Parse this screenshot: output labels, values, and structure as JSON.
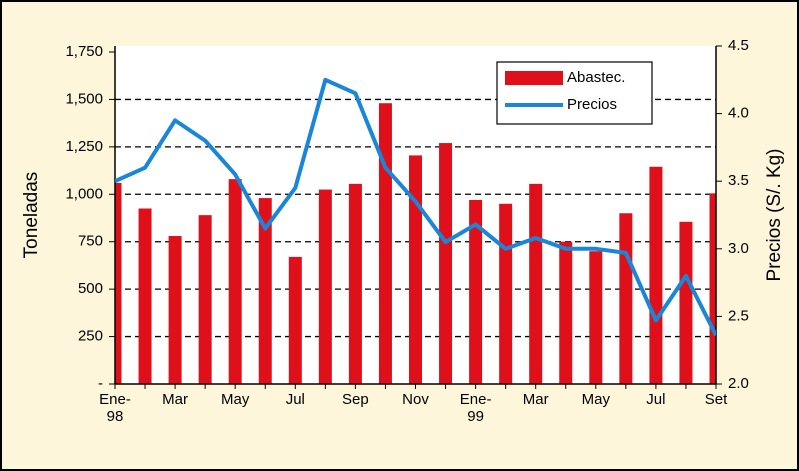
{
  "chart_data": {
    "type": "bar_line",
    "categories": [
      "Ene-98",
      null,
      "Mar",
      null,
      "May",
      null,
      "Jul",
      null,
      "Sep",
      null,
      "Nov",
      null,
      "Ene-99",
      null,
      "Mar",
      null,
      "May",
      null,
      "Jul",
      null,
      "Set"
    ],
    "series": [
      {
        "name": "Abastec.",
        "type": "bar",
        "color": "#e0101a",
        "values": [
          1060,
          925,
          780,
          890,
          1080,
          980,
          670,
          1025,
          1055,
          1480,
          1205,
          1270,
          970,
          950,
          1055,
          750,
          700,
          900,
          1145,
          855,
          1005
        ]
      },
      {
        "name": "Precios",
        "type": "line",
        "axis": "y2",
        "color": "#1a86d8",
        "values": [
          3.5,
          3.6,
          3.95,
          3.8,
          3.55,
          3.15,
          3.45,
          4.25,
          4.15,
          3.6,
          3.35,
          3.05,
          3.18,
          3.0,
          3.08,
          3.0,
          3.0,
          2.97,
          2.47,
          2.8,
          2.36
        ]
      }
    ],
    "ylabel": "Toneladas",
    "y2label": "Precios (S/. Kg)",
    "ylim": [
      0,
      1750
    ],
    "yticks": [
      {
        "value": 0,
        "label": "-"
      },
      250,
      500,
      750,
      {
        "value": 1000,
        "label": "1,000"
      },
      {
        "value": 1250,
        "label": "1,250"
      },
      {
        "value": 1500,
        "label": "1,500"
      },
      {
        "value": 1750,
        "label": "1,750"
      }
    ],
    "y2lim": [
      2.0,
      4.5
    ],
    "y2ticks": [
      {
        "value": 2.0,
        "label": "2.0"
      },
      2.5,
      {
        "value": 3.0,
        "label": "3.0"
      },
      3.5,
      {
        "value": 4.0,
        "label": "4.0"
      },
      4.5
    ],
    "grid": true,
    "legend": "upper right"
  }
}
